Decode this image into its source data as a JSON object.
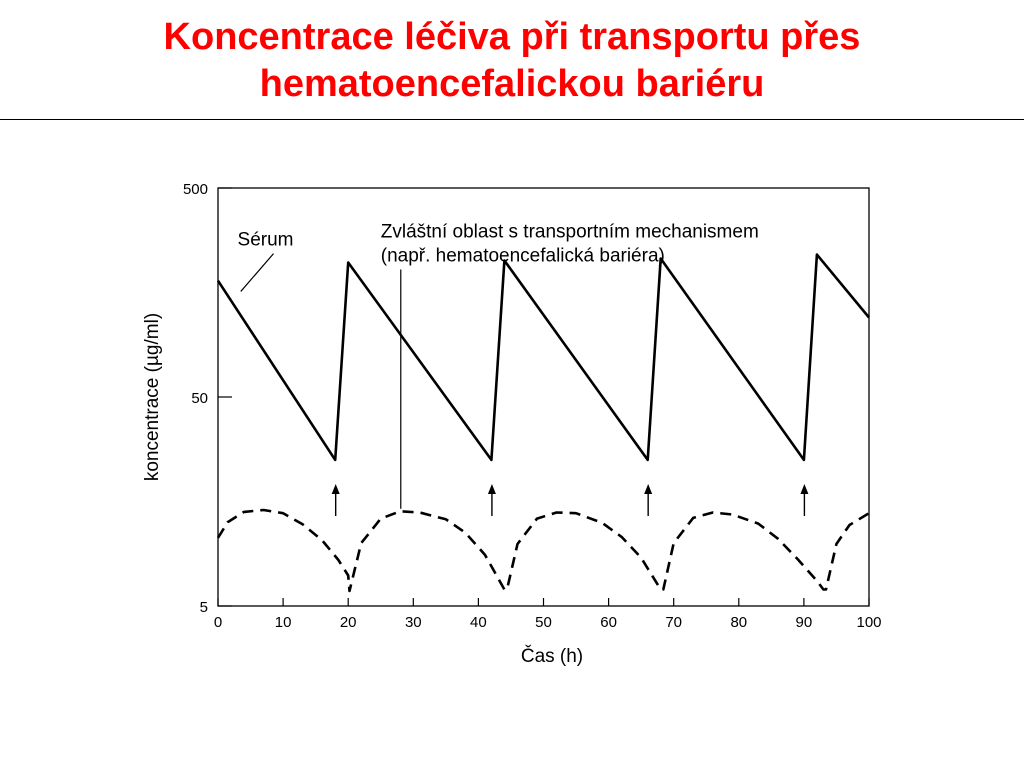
{
  "slide": {
    "title_line1": "Koncentrace léčiva při transportu přes",
    "title_line2": "hematoencefalickou bariéru",
    "title_color": "#ff0000"
  },
  "chart_data": {
    "type": "line",
    "title": "",
    "xlabel": "Čas (h)",
    "ylabel": "koncentrace (µg/ml)",
    "xlim": [
      0,
      100
    ],
    "ylim": [
      5,
      500
    ],
    "yscale": "log",
    "grid": false,
    "x_ticks": [
      0,
      10,
      20,
      30,
      40,
      50,
      60,
      70,
      80,
      90,
      100
    ],
    "x_tick_labels": [
      "0",
      "10",
      "20",
      "30",
      "40",
      "50",
      "60",
      "70",
      "80",
      "90",
      "100"
    ],
    "y_ticks": [
      5,
      50,
      500
    ],
    "y_tick_labels": [
      "5",
      "50",
      "500"
    ],
    "series": [
      {
        "name": "Sérum",
        "style": "solid",
        "color": "#000000",
        "x": [
          0,
          18,
          20,
          42,
          44,
          66,
          68,
          90,
          92,
          100
        ],
        "y": [
          180,
          25,
          220,
          25,
          225,
          25,
          230,
          25,
          240,
          120
        ]
      },
      {
        "name": "",
        "style": "dashed",
        "color": "#000000",
        "x": [
          0,
          1.5,
          4,
          7,
          10,
          13,
          16,
          18.5,
          20,
          20.2,
          22,
          25,
          28,
          31,
          35,
          38,
          41,
          44,
          44.4,
          46,
          49,
          52,
          55,
          59,
          62,
          65,
          68,
          68.4,
          70,
          73,
          76,
          79,
          83,
          86,
          89,
          92,
          93,
          93.4,
          95,
          97,
          100
        ],
        "y": [
          10.6,
          12.6,
          14.1,
          14.4,
          13.9,
          12.3,
          10.3,
          8.3,
          7.0,
          5.9,
          10.0,
          13.1,
          14.2,
          14.0,
          13.0,
          11.2,
          8.8,
          6.0,
          6.0,
          9.9,
          13.1,
          14.0,
          13.9,
          12.5,
          10.7,
          8.5,
          6.0,
          6.0,
          10.0,
          13.2,
          14.0,
          13.7,
          12.4,
          10.5,
          8.4,
          6.6,
          6.0,
          6.0,
          9.9,
          12.2,
          13.9
        ]
      }
    ],
    "dose_arrows_x": [
      18,
      42,
      66,
      90
    ],
    "annotations": [
      {
        "text": "Sérum",
        "x": 3,
        "y": 265,
        "points_to": [
          3.5,
          160
        ]
      },
      {
        "text_line1": "Zvláštní oblast s transportním mechanismem",
        "text_line2": "(např. hematoencefalická bariéra)",
        "x": 25,
        "y": 290,
        "points_to": [
          28,
          14.6
        ]
      }
    ]
  }
}
